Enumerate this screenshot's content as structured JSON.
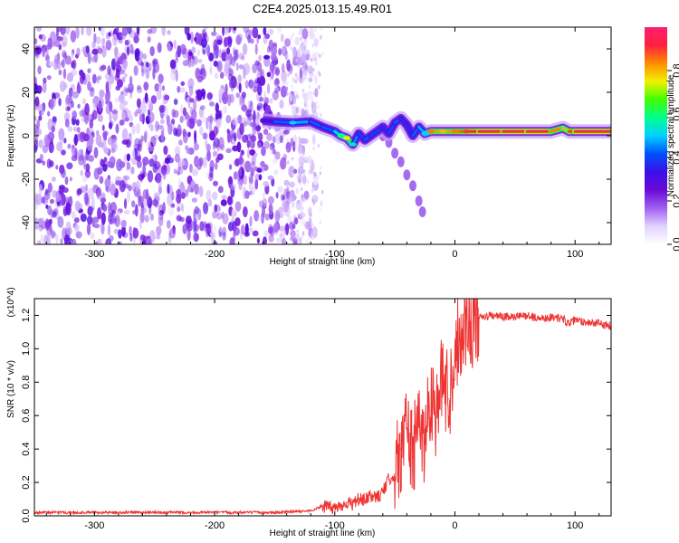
{
  "title": "C2E4.2025.013.15.49.R01",
  "colors": {
    "snr_line": "#ee3333",
    "background": "#ffffff",
    "axes": "#000000"
  },
  "colorbar": {
    "label": "Normalized spectral amplitude",
    "range": [
      0.0,
      1.0
    ],
    "tick_values": [
      0.0,
      0.2,
      0.4,
      0.6,
      0.8
    ],
    "tick_labels": [
      "0.0",
      "0.2",
      "0.4",
      "0.6",
      "0.8"
    ],
    "colormap": [
      "#ffffff",
      "#e2d2ff",
      "#9f60f0",
      "#6a0ad8",
      "#3a10e8",
      "#0050ff",
      "#00d0ff",
      "#00ff90",
      "#40ff00",
      "#f0f000",
      "#ff8c00",
      "#ff2040",
      "#ff2070"
    ]
  },
  "chart_data": [
    {
      "type": "heatmap",
      "title": "C2E4.2025.013.15.49.R01",
      "xlabel": "Height of straight line (km)",
      "ylabel": "Frequency (Hz)",
      "xlim": [
        -350,
        130
      ],
      "ylim": [
        -50,
        50
      ],
      "x_ticks": [
        -300,
        -200,
        -100,
        0,
        100
      ],
      "x_tick_labels": [
        "-300",
        "-200",
        "-100",
        "0",
        "100"
      ],
      "y_ticks": [
        -40,
        -20,
        0,
        20,
        40
      ],
      "y_tick_labels": [
        "-40",
        "-20",
        "0",
        "20",
        "40"
      ],
      "ridge": {
        "x": [
          -160,
          -150,
          -135,
          -120,
          -110,
          -100,
          -95,
          -90,
          -85,
          -80,
          -75,
          -70,
          -60,
          -55,
          -50,
          -45,
          -40,
          -35,
          -30,
          -25,
          -20,
          -10,
          0,
          10,
          20,
          40,
          60,
          80,
          90,
          95,
          100,
          130
        ],
        "y": [
          7,
          6.5,
          6,
          6.5,
          4,
          2,
          0,
          -1,
          -4,
          1,
          -2,
          0,
          4,
          1,
          6,
          8,
          5,
          0,
          4,
          1,
          2,
          2,
          2,
          2,
          2,
          2,
          2,
          2,
          3.5,
          2,
          2,
          2
        ],
        "amplitude": [
          0.3,
          0.35,
          0.5,
          0.45,
          0.4,
          0.45,
          0.6,
          0.75,
          0.55,
          0.35,
          0.45,
          0.4,
          0.4,
          0.35,
          0.45,
          0.4,
          0.35,
          0.4,
          0.45,
          0.5,
          0.85,
          0.8,
          0.85,
          0.9,
          0.95,
          0.95,
          0.95,
          0.95,
          0.75,
          0.85,
          0.95,
          0.95
        ]
      },
      "branch": {
        "x": [
          -60,
          -55,
          -50,
          -45,
          -40,
          -35,
          -30,
          -27
        ],
        "y": [
          0,
          -3,
          -8,
          -12,
          -18,
          -23,
          -30,
          -35
        ]
      }
    },
    {
      "type": "line",
      "xlabel": "Height of straight line (km)",
      "ylabel": "SNR (10 * v/v)",
      "y_multiplier": "(x10^4)",
      "xlim": [
        -350,
        130
      ],
      "ylim": [
        0,
        1.3
      ],
      "x_ticks": [
        -300,
        -200,
        -100,
        0,
        100
      ],
      "x_tick_labels": [
        "-300",
        "-200",
        "-100",
        "0",
        "100"
      ],
      "y_ticks": [
        0.0,
        0.2,
        0.4,
        0.6,
        0.8,
        1.0,
        1.2
      ],
      "y_tick_labels": [
        "0.0",
        "0.2",
        "0.4",
        "0.6",
        "0.8",
        "1.0",
        "1.2"
      ],
      "series": [
        {
          "x": [
            -350,
            -300,
            -250,
            -200,
            -150,
            -120,
            -110,
            -105,
            -100,
            -95,
            -90,
            -85,
            -80,
            -75,
            -70,
            -65,
            -60,
            -55,
            -50,
            -45,
            -40,
            -35,
            -30,
            -25,
            -20,
            -15,
            -10,
            -5,
            0,
            5,
            10,
            20,
            30,
            40,
            50,
            60,
            70,
            80,
            90,
            95,
            100,
            110,
            120,
            130
          ],
          "y": [
            0.02,
            0.02,
            0.02,
            0.02,
            0.02,
            0.03,
            0.06,
            0.05,
            0.05,
            0.06,
            0.08,
            0.07,
            0.1,
            0.09,
            0.12,
            0.11,
            0.14,
            0.22,
            0.25,
            0.4,
            0.55,
            0.35,
            0.55,
            0.45,
            0.75,
            0.6,
            0.85,
            0.7,
            1.0,
            1.1,
            1.15,
            1.18,
            1.2,
            1.19,
            1.19,
            1.2,
            1.18,
            1.19,
            1.18,
            1.15,
            1.17,
            1.16,
            1.15,
            1.14
          ]
        }
      ]
    }
  ]
}
